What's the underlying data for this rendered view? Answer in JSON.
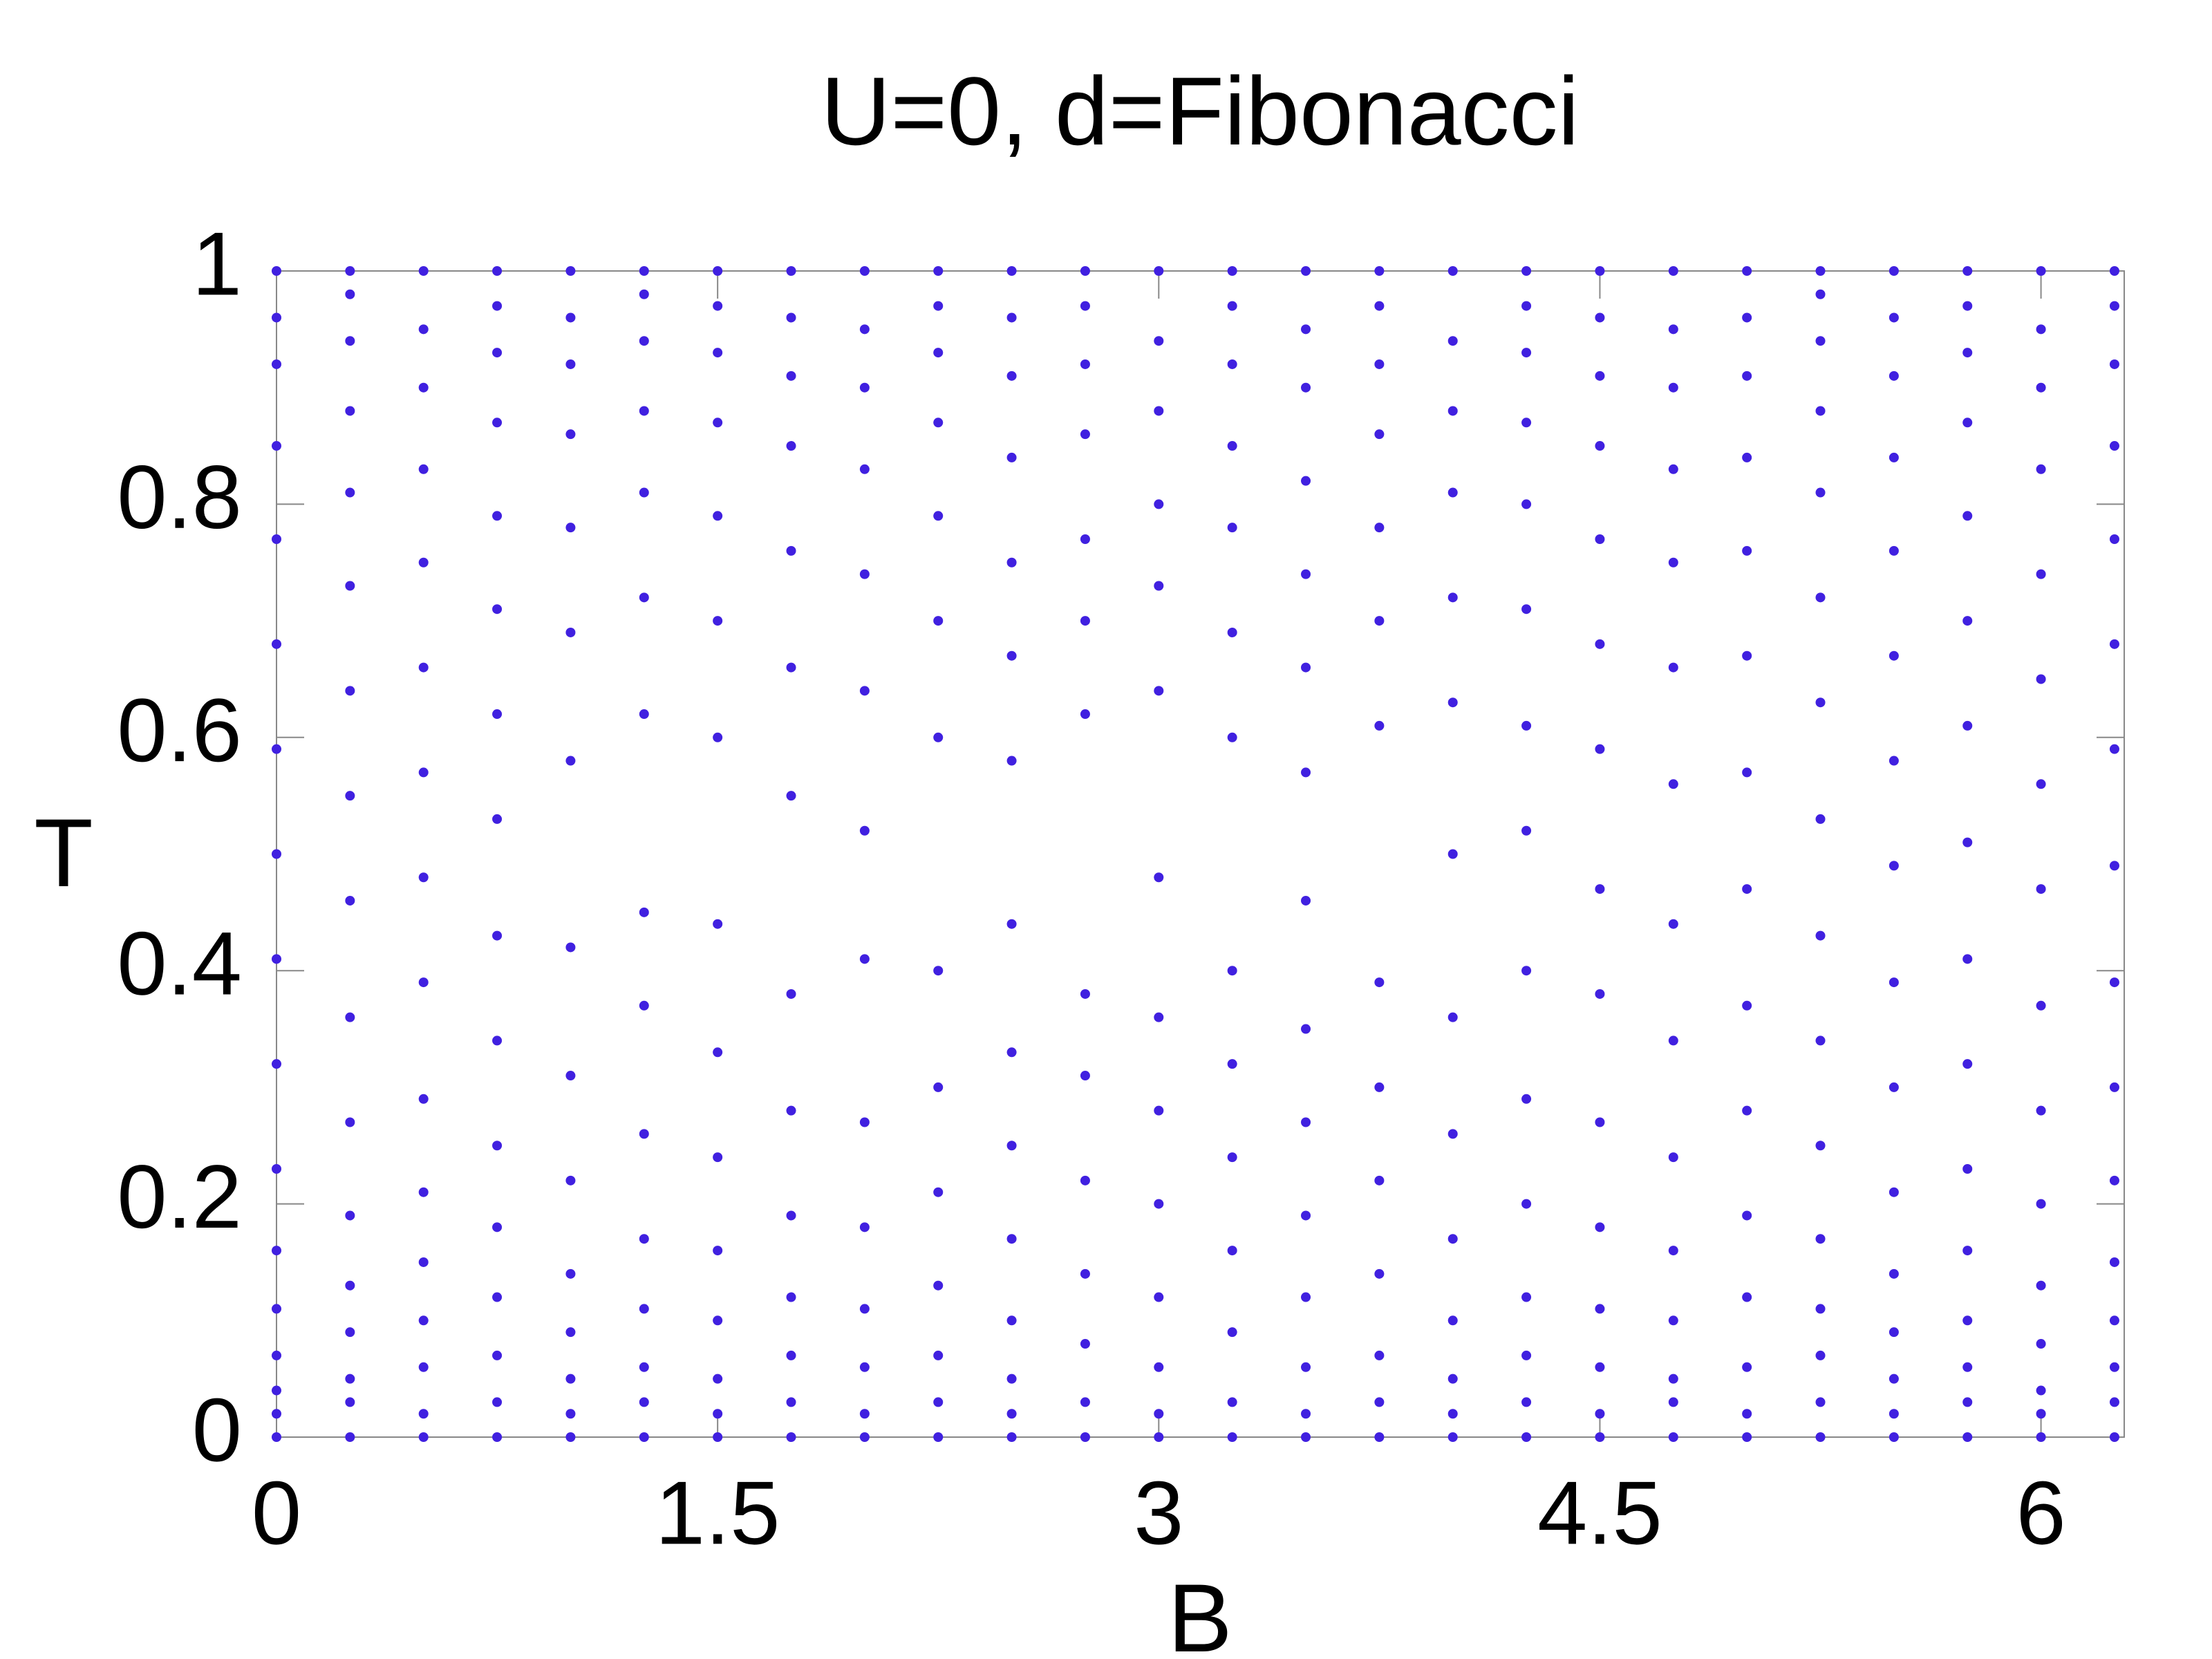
{
  "chart_data": {
    "type": "scatter",
    "title": "U=0, d=Fibonacci",
    "x_label": "B",
    "y_label": "T",
    "color": "#4020e0",
    "xlim": [
      0,
      6.283
    ],
    "xticks": [
      0,
      1.5,
      3,
      4.5,
      6
    ],
    "ylim": [
      0,
      1
    ],
    "yticks": [
      0,
      0.2,
      0.4,
      0.6,
      0.8,
      1
    ],
    "columns": [
      {
        "x": 0,
        "y": [
          0,
          0.02,
          0.04,
          0.07,
          0.11,
          0.16,
          0.23,
          0.32,
          0.41,
          0.5,
          0.59,
          0.68,
          0.77,
          0.85,
          0.92,
          0.96,
          1
        ]
      },
      {
        "x": 0.25,
        "y": [
          0,
          0.03,
          0.05,
          0.09,
          0.13,
          0.19,
          0.27,
          0.36,
          0.46,
          0.55,
          0.64,
          0.73,
          0.81,
          0.88,
          0.94,
          0.98,
          1
        ]
      },
      {
        "x": 0.5,
        "y": [
          0,
          0.02,
          0.06,
          0.1,
          0.15,
          0.21,
          0.29,
          0.39,
          0.48,
          0.57,
          0.66,
          0.75,
          0.83,
          0.9,
          0.95,
          1
        ]
      },
      {
        "x": 0.75,
        "y": [
          0,
          0.03,
          0.07,
          0.12,
          0.18,
          0.25,
          0.34,
          0.43,
          0.53,
          0.62,
          0.71,
          0.79,
          0.87,
          0.93,
          0.97,
          1
        ]
      },
      {
        "x": 1,
        "y": [
          0,
          0.02,
          0.05,
          0.09,
          0.14,
          0.22,
          0.31,
          0.42,
          0.58,
          0.69,
          0.78,
          0.86,
          0.92,
          0.96,
          1
        ]
      },
      {
        "x": 1.25,
        "y": [
          0,
          0.03,
          0.06,
          0.11,
          0.17,
          0.26,
          0.37,
          0.45,
          0.62,
          0.72,
          0.81,
          0.88,
          0.94,
          0.98,
          1
        ]
      },
      {
        "x": 1.5,
        "y": [
          0,
          0.02,
          0.05,
          0.1,
          0.16,
          0.24,
          0.33,
          0.44,
          0.6,
          0.7,
          0.79,
          0.87,
          0.93,
          0.97,
          1
        ]
      },
      {
        "x": 1.75,
        "y": [
          0,
          0.03,
          0.07,
          0.12,
          0.19,
          0.28,
          0.38,
          0.55,
          0.66,
          0.76,
          0.85,
          0.91,
          0.96,
          1
        ]
      },
      {
        "x": 2,
        "y": [
          0,
          0.02,
          0.06,
          0.11,
          0.18,
          0.27,
          0.41,
          0.52,
          0.64,
          0.74,
          0.83,
          0.9,
          0.95,
          1
        ]
      },
      {
        "x": 2.25,
        "y": [
          0,
          0.03,
          0.07,
          0.13,
          0.21,
          0.3,
          0.4,
          0.6,
          0.7,
          0.79,
          0.87,
          0.93,
          0.97,
          1
        ]
      },
      {
        "x": 2.5,
        "y": [
          0,
          0.02,
          0.05,
          0.1,
          0.17,
          0.25,
          0.33,
          0.44,
          0.58,
          0.67,
          0.75,
          0.84,
          0.91,
          0.96,
          1
        ]
      },
      {
        "x": 2.75,
        "y": [
          0,
          0.03,
          0.08,
          0.14,
          0.22,
          0.31,
          0.38,
          0.62,
          0.7,
          0.77,
          0.86,
          0.92,
          0.97,
          1
        ]
      },
      {
        "x": 3,
        "y": [
          0,
          0.02,
          0.06,
          0.12,
          0.2,
          0.28,
          0.36,
          0.48,
          0.64,
          0.73,
          0.8,
          0.88,
          0.94,
          1
        ]
      },
      {
        "x": 3.25,
        "y": [
          0,
          0.03,
          0.09,
          0.16,
          0.24,
          0.32,
          0.4,
          0.6,
          0.69,
          0.78,
          0.85,
          0.92,
          0.97,
          1
        ]
      },
      {
        "x": 3.5,
        "y": [
          0,
          0.02,
          0.06,
          0.12,
          0.19,
          0.27,
          0.35,
          0.46,
          0.57,
          0.66,
          0.74,
          0.82,
          0.9,
          0.95,
          1
        ]
      },
      {
        "x": 3.75,
        "y": [
          0,
          0.03,
          0.07,
          0.14,
          0.22,
          0.3,
          0.39,
          0.61,
          0.7,
          0.78,
          0.86,
          0.92,
          0.97,
          1
        ]
      },
      {
        "x": 4,
        "y": [
          0,
          0.02,
          0.05,
          0.1,
          0.17,
          0.26,
          0.36,
          0.5,
          0.63,
          0.72,
          0.81,
          0.88,
          0.94,
          1
        ]
      },
      {
        "x": 4.25,
        "y": [
          0,
          0.03,
          0.07,
          0.12,
          0.2,
          0.29,
          0.4,
          0.52,
          0.61,
          0.71,
          0.8,
          0.87,
          0.93,
          0.97,
          1
        ]
      },
      {
        "x": 4.5,
        "y": [
          0,
          0.02,
          0.06,
          0.11,
          0.18,
          0.27,
          0.38,
          0.47,
          0.59,
          0.68,
          0.77,
          0.85,
          0.91,
          0.96,
          1
        ]
      },
      {
        "x": 4.75,
        "y": [
          0,
          0.03,
          0.05,
          0.1,
          0.16,
          0.24,
          0.34,
          0.44,
          0.56,
          0.66,
          0.75,
          0.83,
          0.9,
          0.95,
          1
        ]
      },
      {
        "x": 5,
        "y": [
          0,
          0.02,
          0.06,
          0.12,
          0.19,
          0.28,
          0.37,
          0.47,
          0.57,
          0.67,
          0.76,
          0.84,
          0.91,
          0.96,
          1
        ]
      },
      {
        "x": 5.25,
        "y": [
          0,
          0.03,
          0.07,
          0.11,
          0.17,
          0.25,
          0.34,
          0.43,
          0.53,
          0.63,
          0.72,
          0.81,
          0.88,
          0.94,
          0.98,
          1
        ]
      },
      {
        "x": 5.5,
        "y": [
          0,
          0.02,
          0.05,
          0.09,
          0.14,
          0.21,
          0.3,
          0.39,
          0.49,
          0.58,
          0.67,
          0.76,
          0.84,
          0.91,
          0.96,
          1
        ]
      },
      {
        "x": 5.75,
        "y": [
          0,
          0.03,
          0.06,
          0.1,
          0.16,
          0.23,
          0.32,
          0.41,
          0.51,
          0.61,
          0.7,
          0.79,
          0.87,
          0.93,
          0.97,
          1
        ]
      },
      {
        "x": 6,
        "y": [
          0,
          0.02,
          0.04,
          0.08,
          0.13,
          0.2,
          0.28,
          0.37,
          0.47,
          0.56,
          0.65,
          0.74,
          0.83,
          0.9,
          0.95,
          1
        ]
      },
      {
        "x": 6.25,
        "y": [
          0,
          0.03,
          0.06,
          0.1,
          0.15,
          0.22,
          0.3,
          0.39,
          0.49,
          0.59,
          0.68,
          0.77,
          0.85,
          0.92,
          0.97,
          1
        ]
      }
    ]
  }
}
